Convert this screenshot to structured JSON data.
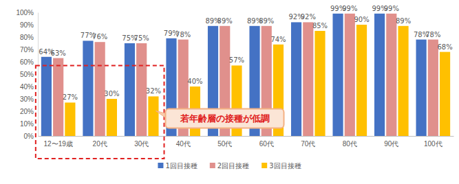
{
  "chart_data": {
    "type": "bar",
    "annotation": "若年齢層の接種が低調",
    "categories": [
      "12〜19歳",
      "20代",
      "30代",
      "40代",
      "50代",
      "60代",
      "70代",
      "80代",
      "90代",
      "100代"
    ],
    "series": [
      {
        "name": "1回目接種",
        "color": "#4472c4",
        "values": [
          64,
          77,
          75,
          79,
          89,
          89,
          92,
          99,
          99,
          78
        ],
        "value_labels": [
          "64%",
          "77%",
          "75%",
          "79%",
          "89%",
          "89%",
          "92%",
          "99%",
          "99%",
          "78%"
        ]
      },
      {
        "name": "2回目接種",
        "color": "#e0908c",
        "values": [
          63,
          76,
          75,
          78,
          89,
          89,
          92,
          99,
          99,
          78
        ],
        "value_labels": [
          "63%",
          "76%",
          "75%",
          "78%",
          "89%",
          "89%",
          "92%",
          "99%",
          "99%",
          "78%"
        ]
      },
      {
        "name": "3回目接種",
        "color": "#ffc000",
        "values": [
          27,
          30,
          32,
          40,
          57,
          74,
          85,
          90,
          89,
          68
        ],
        "value_labels": [
          "27%",
          "30%",
          "32%",
          "40%",
          "57%",
          "74%",
          "85%",
          "90%",
          "89%",
          "68%"
        ]
      }
    ],
    "ylim": [
      0,
      100
    ],
    "yticks": [
      {
        "value": 0,
        "label": "0%"
      },
      {
        "value": 10,
        "label": "10%"
      },
      {
        "value": 20,
        "label": "20%"
      },
      {
        "value": 30,
        "label": "30%"
      },
      {
        "value": 40,
        "label": "40%"
      },
      {
        "value": 50,
        "label": "50%"
      },
      {
        "value": 60,
        "label": "60%"
      },
      {
        "value": 70,
        "label": "70%"
      },
      {
        "value": 80,
        "label": "80%"
      },
      {
        "value": 90,
        "label": "90%"
      },
      {
        "value": 100,
        "label": "100%"
      }
    ],
    "grid": false,
    "legend": "bottom",
    "data_labels": true
  }
}
